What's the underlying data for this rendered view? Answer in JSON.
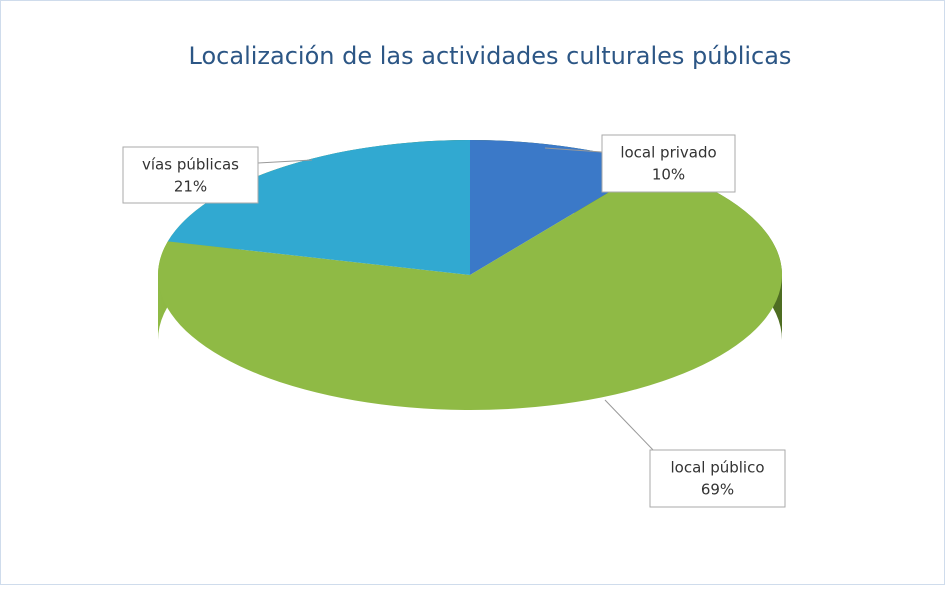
{
  "chart_data": {
    "type": "pie",
    "title": "Localización de las actividades culturales públicas",
    "categories": [
      "local privado",
      "local público",
      "vías públicas"
    ],
    "values": [
      10,
      69,
      21
    ],
    "value_labels": [
      "10%",
      "69%",
      "21%"
    ],
    "colors": [
      "#3b79c8",
      "#8fba45",
      "#31a9d1"
    ],
    "wall_colors": [
      "#244f87",
      "#4e6d22",
      "#1d7494"
    ]
  }
}
